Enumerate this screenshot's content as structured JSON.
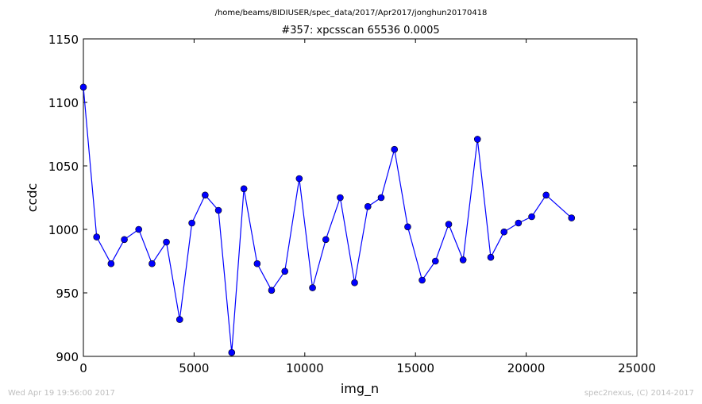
{
  "chart_data": {
    "type": "line",
    "suptitle": "/home/beams/8IDIUSER/spec_data/2017/Apr2017/jonghun20170418",
    "title": "#357: xpcsscan 65536 0.0005",
    "xlabel": "img_n",
    "ylabel": "ccdc",
    "xlim": [
      0,
      25000
    ],
    "ylim": [
      900,
      1150
    ],
    "xticks": [
      0,
      5000,
      10000,
      15000,
      20000,
      25000
    ],
    "yticks": [
      900,
      950,
      1000,
      1050,
      1100,
      1150
    ],
    "grid": false,
    "line_color": "#0000ff",
    "marker_color": "#0000ff",
    "series": [
      {
        "x": [
          0,
          600,
          1250,
          1850,
          2500,
          3100,
          3750,
          4350,
          4900,
          5500,
          6100,
          6700,
          7250,
          7850,
          8500,
          9100,
          9750,
          10350,
          10950,
          11600,
          12250,
          12850,
          13450,
          14050,
          14650,
          15300,
          15900,
          16500,
          17150,
          17800,
          18400,
          19000,
          19650,
          20250,
          20900,
          22050
        ],
        "y": [
          1112,
          994,
          973,
          992,
          1000,
          973,
          990,
          929,
          1005,
          1027,
          1015,
          903,
          1032,
          973,
          952,
          967,
          1040,
          954,
          992,
          1025,
          958,
          1018,
          1025,
          1063,
          1002,
          960,
          975,
          1004,
          976,
          1071,
          978,
          998,
          1005,
          1010,
          1027,
          1009
        ]
      }
    ]
  },
  "footer": {
    "left": "Wed Apr 19 19:56:00 2017",
    "right": "spec2nexus, (C) 2014-2017"
  }
}
